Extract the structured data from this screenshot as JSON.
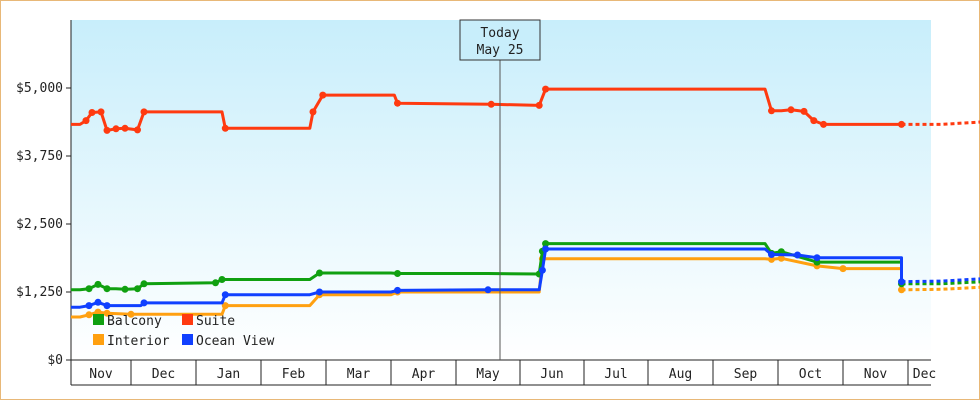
{
  "chart_data": {
    "type": "line",
    "title": "",
    "xlabel": "",
    "ylabel": "",
    "ylim": [
      0,
      6250
    ],
    "y_ticks": [
      {
        "value": 0,
        "label": "$0"
      },
      {
        "value": 1250,
        "label": "$1,250"
      },
      {
        "value": 2500,
        "label": "$2,500"
      },
      {
        "value": 3750,
        "label": "$3,750"
      },
      {
        "value": 5000,
        "label": "$5,000"
      }
    ],
    "months": [
      "Nov",
      "Dec",
      "Jan",
      "Feb",
      "Mar",
      "Apr",
      "May",
      "Jun",
      "Jul",
      "Aug",
      "Sep",
      "Oct",
      "Nov",
      "Dec"
    ],
    "today": {
      "line1": "Today",
      "line2": "May 25"
    },
    "legend_position": "bottom-left",
    "series": [
      {
        "name": "Suite",
        "color": "#ff3a10",
        "points": [
          [
            0.0,
            4330
          ],
          [
            0.15,
            4330
          ],
          [
            0.25,
            4400
          ],
          [
            0.35,
            4550
          ],
          [
            0.5,
            4560
          ],
          [
            0.6,
            4220
          ],
          [
            0.75,
            4250
          ],
          [
            0.9,
            4260
          ],
          [
            1.1,
            4230
          ],
          [
            1.2,
            4560
          ],
          [
            2.4,
            4560
          ],
          [
            2.45,
            4260
          ],
          [
            3.75,
            4260
          ],
          [
            3.8,
            4560
          ],
          [
            3.95,
            4870
          ],
          [
            5.05,
            4870
          ],
          [
            5.1,
            4720
          ],
          [
            6.55,
            4700
          ],
          [
            7.3,
            4680
          ],
          [
            7.4,
            4980
          ],
          [
            10.8,
            4980
          ],
          [
            10.9,
            4580
          ],
          [
            11.05,
            4580
          ],
          [
            11.2,
            4600
          ],
          [
            11.4,
            4570
          ],
          [
            11.55,
            4400
          ],
          [
            11.7,
            4330
          ],
          [
            12.05,
            4330
          ],
          [
            12.9,
            4330
          ]
        ],
        "projection": [
          [
            12.9,
            4330
          ],
          [
            14,
            4330
          ],
          [
            22.5,
            4640
          ]
        ]
      },
      {
        "name": "Ocean View",
        "color": "#1040ff",
        "points": [
          [
            0.0,
            970
          ],
          [
            0.15,
            970
          ],
          [
            0.3,
            1000
          ],
          [
            0.45,
            1060
          ],
          [
            0.6,
            1000
          ],
          [
            1.15,
            1000
          ],
          [
            1.2,
            1050
          ],
          [
            2.4,
            1050
          ],
          [
            2.45,
            1200
          ],
          [
            3.75,
            1200
          ],
          [
            3.9,
            1250
          ],
          [
            5.0,
            1250
          ],
          [
            5.1,
            1280
          ],
          [
            6.5,
            1290
          ],
          [
            7.3,
            1290
          ],
          [
            7.35,
            1650
          ],
          [
            7.4,
            2040
          ],
          [
            10.8,
            2040
          ],
          [
            10.9,
            1940
          ],
          [
            11.3,
            1930
          ],
          [
            11.6,
            1880
          ],
          [
            12.9,
            1880
          ],
          [
            12.9,
            1440
          ]
        ],
        "projection": [
          [
            12.9,
            1440
          ],
          [
            14,
            1450
          ],
          [
            22.5,
            1740
          ]
        ]
      },
      {
        "name": "Balcony",
        "color": "#10a010",
        "points": [
          [
            0.0,
            1290
          ],
          [
            0.15,
            1290
          ],
          [
            0.3,
            1310
          ],
          [
            0.45,
            1390
          ],
          [
            0.6,
            1310
          ],
          [
            0.75,
            1310
          ],
          [
            0.9,
            1300
          ],
          [
            1.1,
            1310
          ],
          [
            1.2,
            1400
          ],
          [
            2.3,
            1420
          ],
          [
            2.4,
            1480
          ],
          [
            3.75,
            1480
          ],
          [
            3.9,
            1600
          ],
          [
            5.0,
            1600
          ],
          [
            5.1,
            1590
          ],
          [
            6.5,
            1590
          ],
          [
            7.3,
            1580
          ],
          [
            7.35,
            2000
          ],
          [
            7.4,
            2140
          ],
          [
            10.8,
            2140
          ],
          [
            10.9,
            1960
          ],
          [
            11.05,
            1990
          ],
          [
            11.6,
            1800
          ],
          [
            12.9,
            1800
          ],
          [
            12.9,
            1400
          ]
        ],
        "projection": [
          [
            12.9,
            1400
          ],
          [
            14,
            1400
          ],
          [
            22.5,
            1660
          ]
        ]
      },
      {
        "name": "Interior",
        "color": "#ffa010",
        "points": [
          [
            0.0,
            790
          ],
          [
            0.15,
            790
          ],
          [
            0.3,
            830
          ],
          [
            0.45,
            880
          ],
          [
            0.6,
            860
          ],
          [
            1.0,
            840
          ],
          [
            2.4,
            840
          ],
          [
            2.45,
            1000
          ],
          [
            3.75,
            1000
          ],
          [
            3.9,
            1200
          ],
          [
            5.0,
            1200
          ],
          [
            5.1,
            1250
          ],
          [
            6.5,
            1250
          ],
          [
            7.3,
            1250
          ],
          [
            7.35,
            1860
          ],
          [
            7.4,
            1860
          ],
          [
            10.8,
            1860
          ],
          [
            10.9,
            1850
          ],
          [
            11.05,
            1870
          ],
          [
            11.6,
            1730
          ],
          [
            12.0,
            1680
          ],
          [
            12.9,
            1680
          ],
          [
            12.9,
            1290
          ]
        ],
        "projection": [
          [
            12.9,
            1290
          ],
          [
            14,
            1300
          ],
          [
            22.5,
            1560
          ]
        ]
      }
    ]
  }
}
